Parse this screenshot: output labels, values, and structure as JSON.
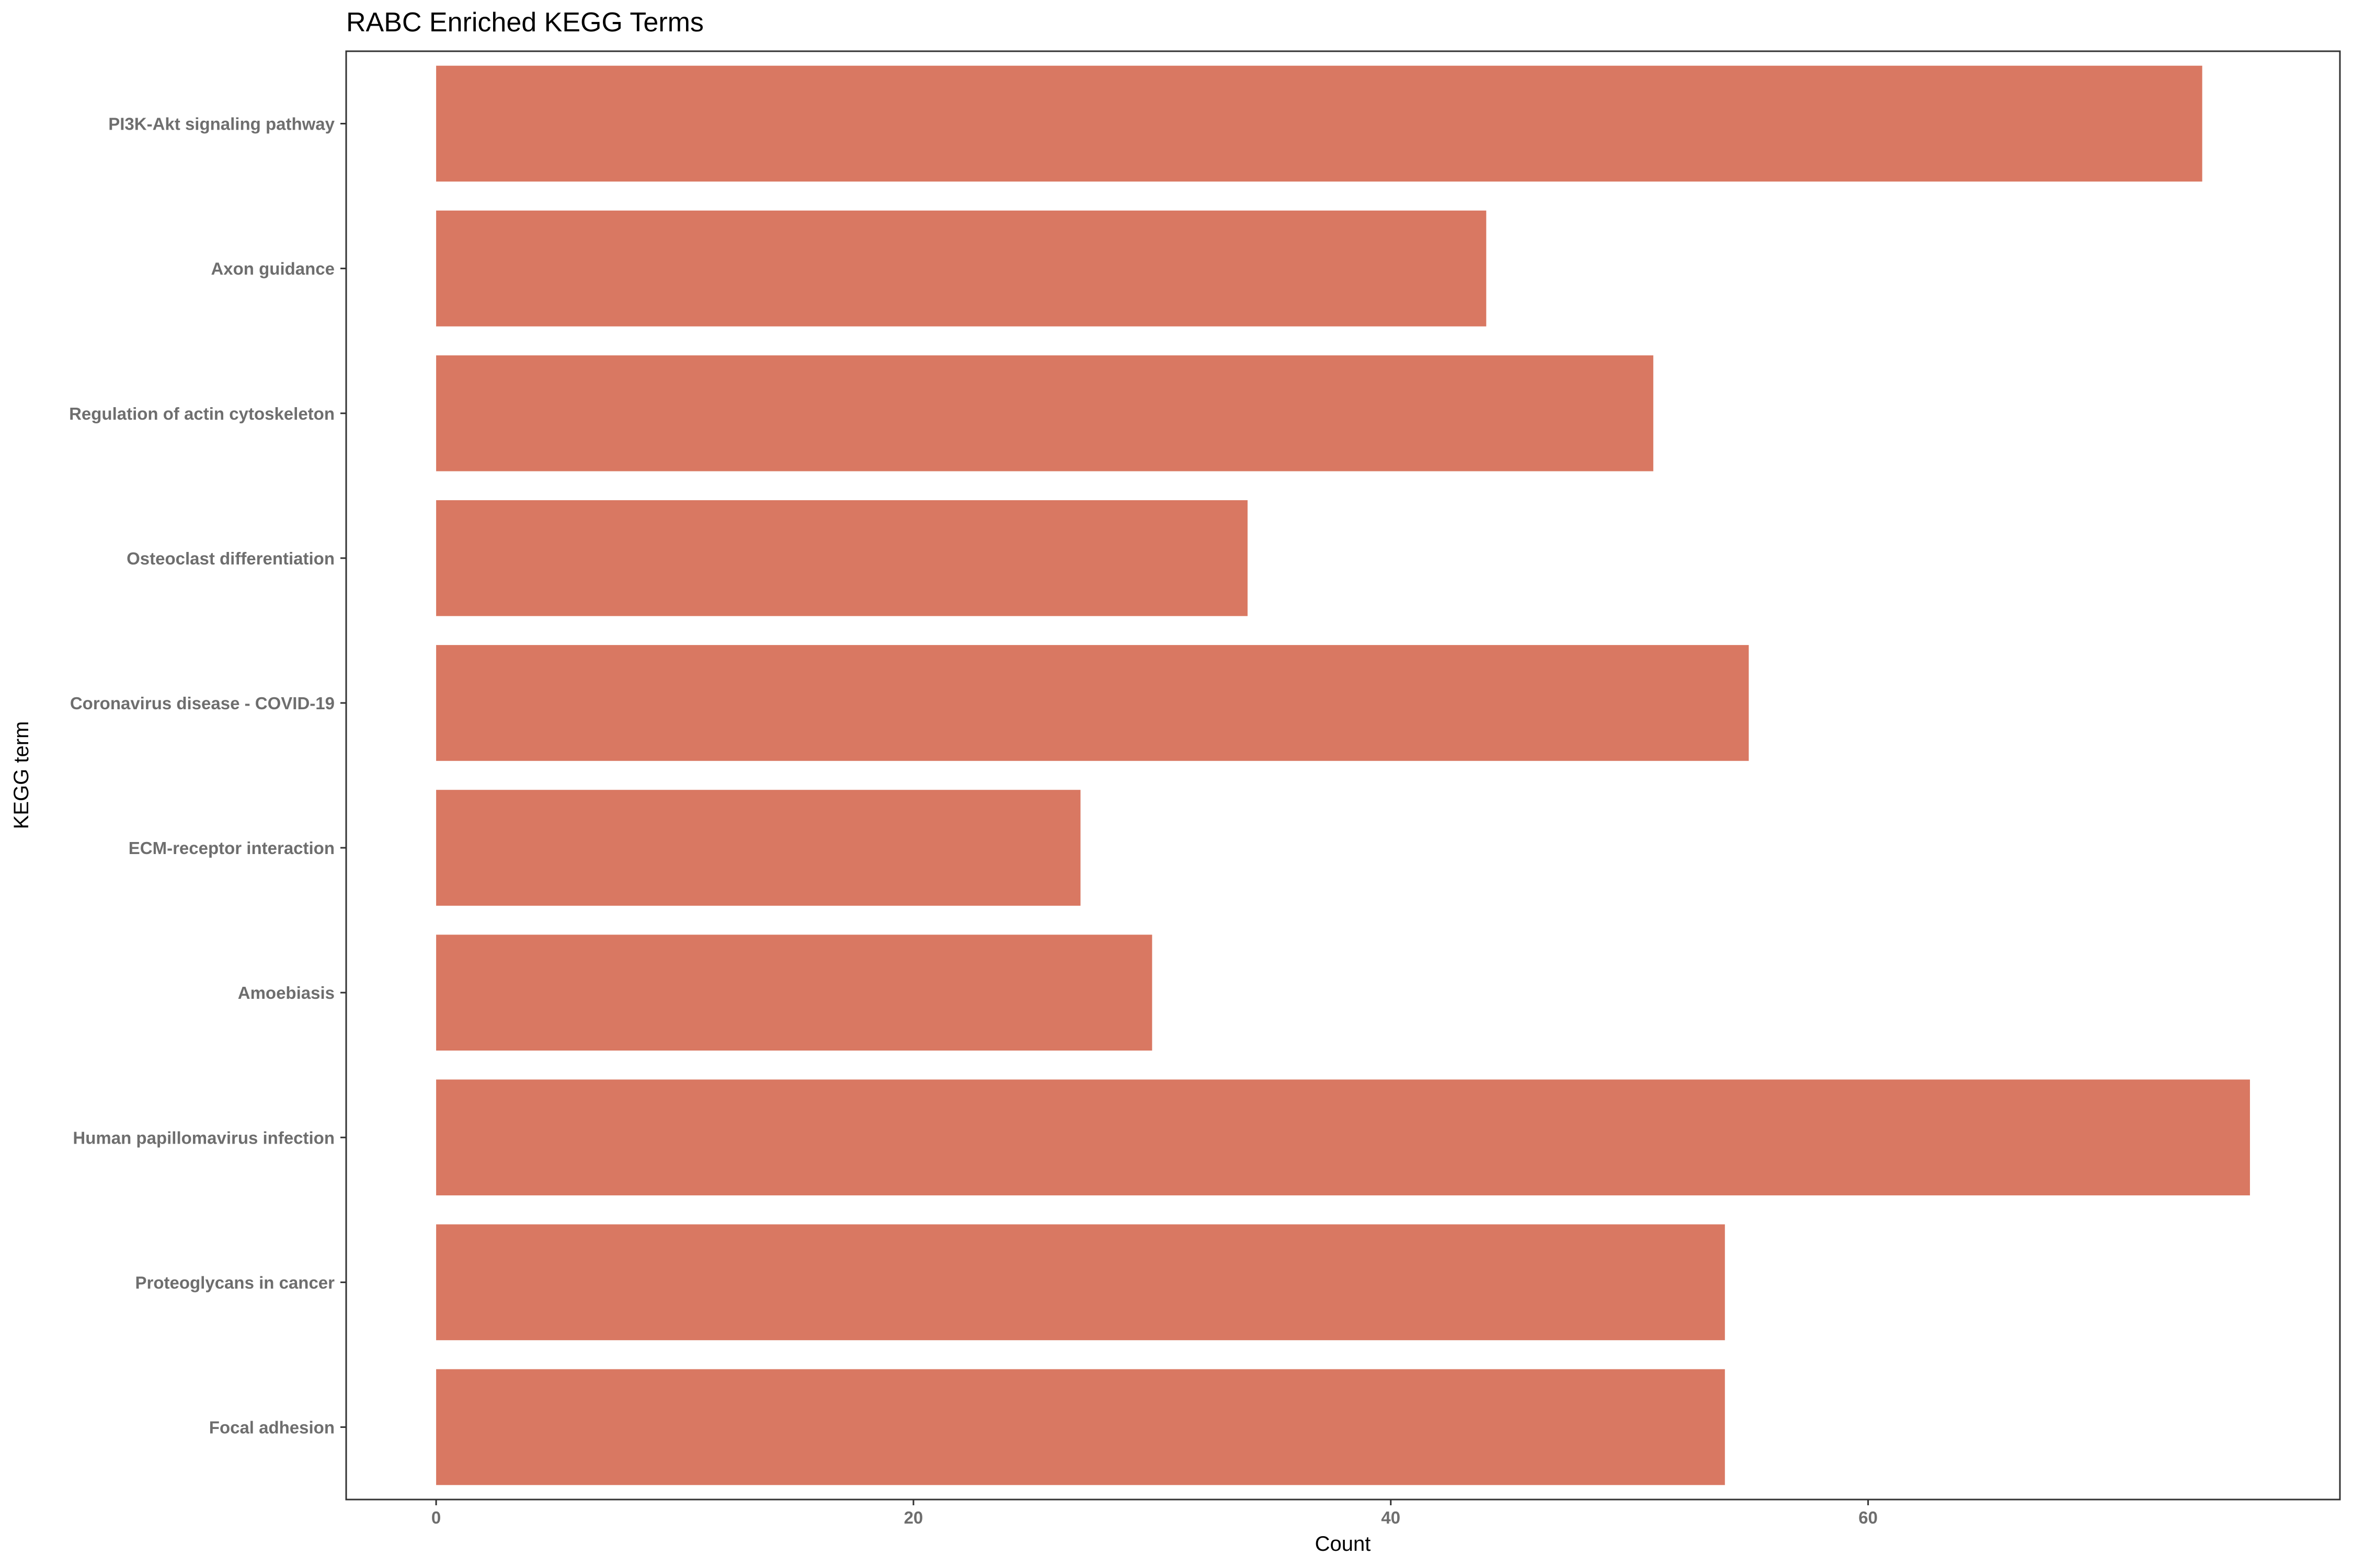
{
  "chart_data": {
    "type": "bar",
    "orientation": "horizontal",
    "title": "RABC Enriched KEGG Terms",
    "xlabel": "Count",
    "ylabel": "KEGG term",
    "categories": [
      "PI3K-Akt signaling pathway",
      "Axon guidance",
      "Regulation of actin cytoskeleton",
      "Osteoclast differentiation",
      "Coronavirus disease - COVID-19",
      "ECM-receptor interaction",
      "Amoebiasis",
      "Human papillomavirus infection",
      "Proteoglycans in cancer",
      "Focal adhesion"
    ],
    "values": [
      74,
      44,
      51,
      34,
      55,
      27,
      30,
      76,
      54,
      54
    ],
    "xlim": [
      -3.77,
      79.77
    ],
    "xticks": [
      0,
      20,
      40,
      60
    ],
    "bar_color": "#d97862",
    "grid": false,
    "legend": "none"
  }
}
